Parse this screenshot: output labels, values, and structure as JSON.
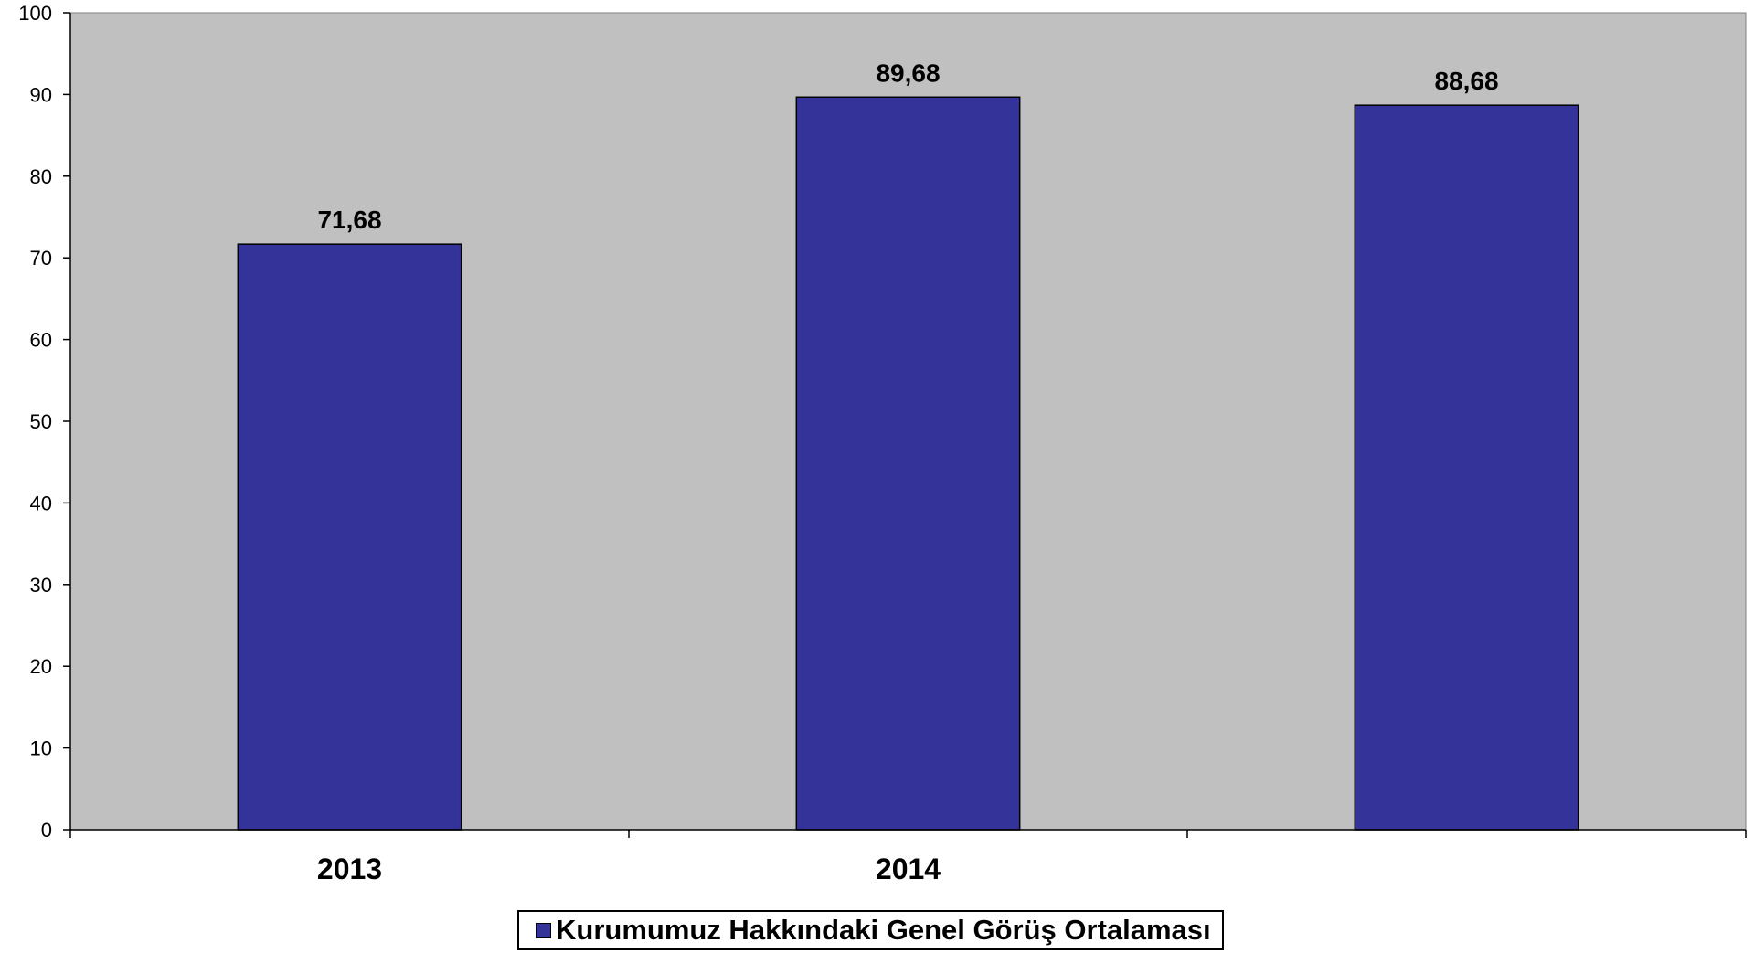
{
  "chart_data": {
    "type": "bar",
    "categories": [
      "2013",
      "2014",
      ""
    ],
    "series": [
      {
        "name": "Kurumumuz Hakkındaki Genel Görüş Ortalaması",
        "values": [
          71.68,
          89.68,
          88.68
        ],
        "value_labels": [
          "71,68",
          "89,68",
          "88,68"
        ],
        "color": "#333399"
      }
    ],
    "ylim": [
      0,
      100
    ],
    "yticks": [
      0,
      10,
      20,
      30,
      40,
      50,
      60,
      70,
      80,
      90,
      100
    ],
    "plot_background": "#c0c0c0",
    "grid": false,
    "legend_position": "bottom"
  }
}
